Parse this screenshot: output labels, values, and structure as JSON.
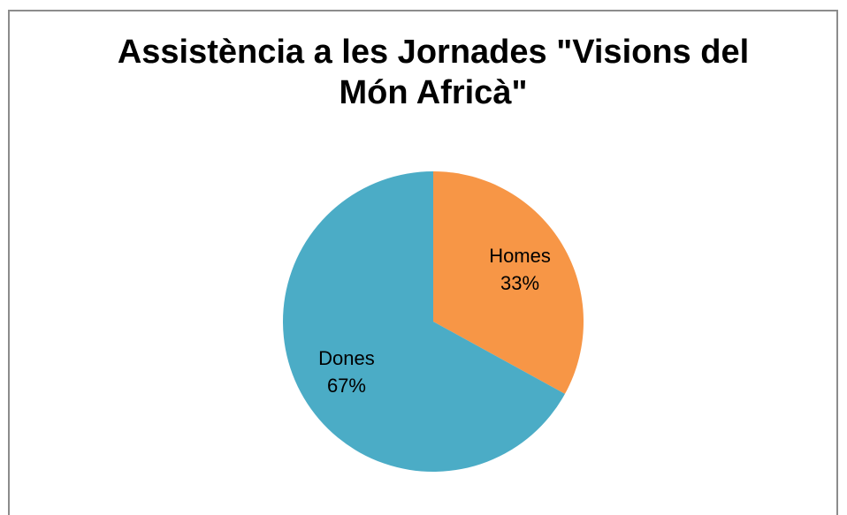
{
  "chart_data": {
    "type": "pie",
    "title": "Assistència a les Jornades \"Visions del Món Africà\"",
    "categories": [
      "Homes",
      "Dones"
    ],
    "values": [
      33,
      67
    ],
    "value_labels": [
      "33%",
      "67%"
    ],
    "colors": [
      "#f79646",
      "#4bacc6"
    ]
  }
}
